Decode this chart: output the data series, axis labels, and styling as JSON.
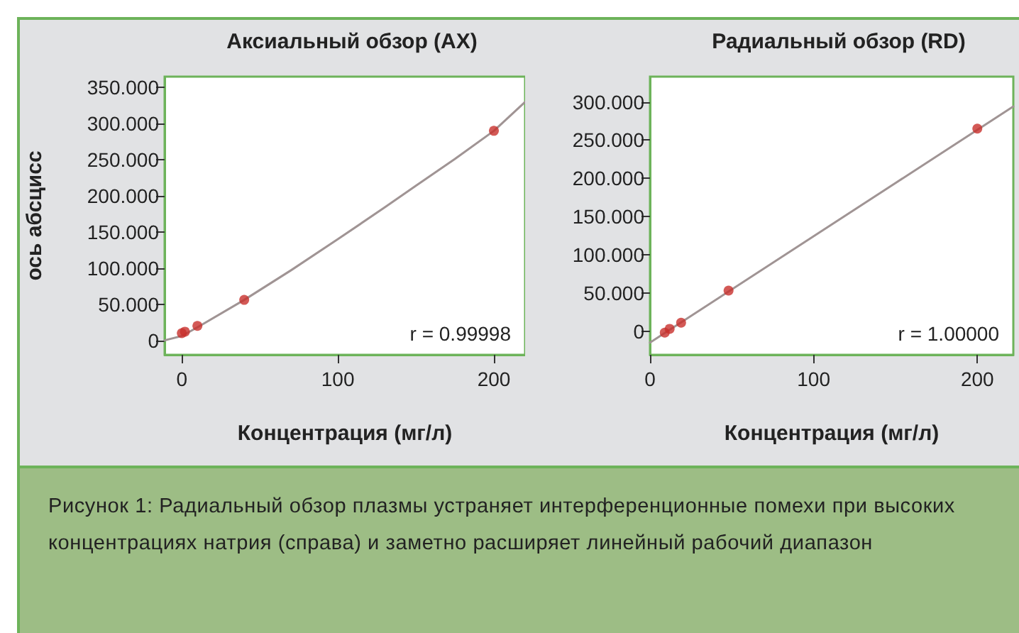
{
  "chart_data": [
    {
      "type": "scatter",
      "title": "Аксиальный обзор (AX)",
      "xlabel": "Концентрация (мг/л)",
      "ylabel": "ось абсцисс",
      "annotations": [
        "r = 0.99998",
        "Рисунок 1: Радиальный обзор плазмы устраняет интерференционные помехи при высоких концентрациях натрия (справа) и заметно расширяет линейный рабочий диапазон"
      ],
      "series": [
        {
          "type": "scatter",
          "color": "#c8302c",
          "marker": "circle",
          "x": [
            0,
            2,
            10,
            40,
            200
          ],
          "values": [
            10,
            12,
            20,
            56,
            290
          ]
        },
        {
          "type": "line",
          "color": "#a09494",
          "marker": "none",
          "line_style": "solid",
          "x": [
            -11,
            0,
            10,
            40,
            70,
            100,
            130,
            150,
            175,
            200,
            220
          ],
          "values": [
            0,
            6,
            18,
            56,
            97,
            140,
            184,
            214,
            251,
            290,
            330
          ]
        }
      ],
      "xlim": [
        -11,
        220
      ],
      "xticks": [
        0,
        100,
        200
      ],
      "ylim": [
        -20,
        365
      ],
      "yticks": [
        0,
        {
          "value": 50,
          "label": "50.000"
        },
        {
          "value": 100,
          "label": "100.000"
        },
        {
          "value": 150,
          "label": "150.000"
        },
        {
          "value": 200,
          "label": "200.000"
        },
        {
          "value": 250,
          "label": "250.000"
        },
        {
          "value": 300,
          "label": "300.000"
        },
        {
          "value": 350,
          "label": "350.000"
        }
      ],
      "grid": false
    },
    {
      "type": "scatter",
      "title": "Радиальный обзор (RD)",
      "xlabel": "Концентрация (мг/л)",
      "annotations": [
        "r = 1.00000"
      ],
      "series": [
        {
          "type": "scatter",
          "color": "#c8302c",
          "marker": "circle",
          "x": [
            9,
            12,
            19,
            48,
            200
          ],
          "values": [
            -2,
            3,
            11,
            53,
            265
          ]
        },
        {
          "type": "line",
          "color": "#a09494",
          "marker": "none",
          "line_style": "solid",
          "x": [
            0,
            222
          ],
          "values": [
            -15,
            294
          ]
        }
      ],
      "xlim": [
        0,
        222
      ],
      "xticks": [
        0,
        100,
        200
      ],
      "ylim": [
        -31,
        333
      ],
      "yticks": [
        0,
        {
          "value": 50,
          "label": "50.000"
        },
        {
          "value": 100,
          "label": "100.000"
        },
        {
          "value": 150,
          "label": "150.000"
        },
        {
          "value": 200,
          "label": "200.000"
        },
        {
          "value": 250,
          "label": "250.000"
        },
        {
          "value": 300,
          "label": "300.000"
        }
      ],
      "grid": false
    }
  ]
}
